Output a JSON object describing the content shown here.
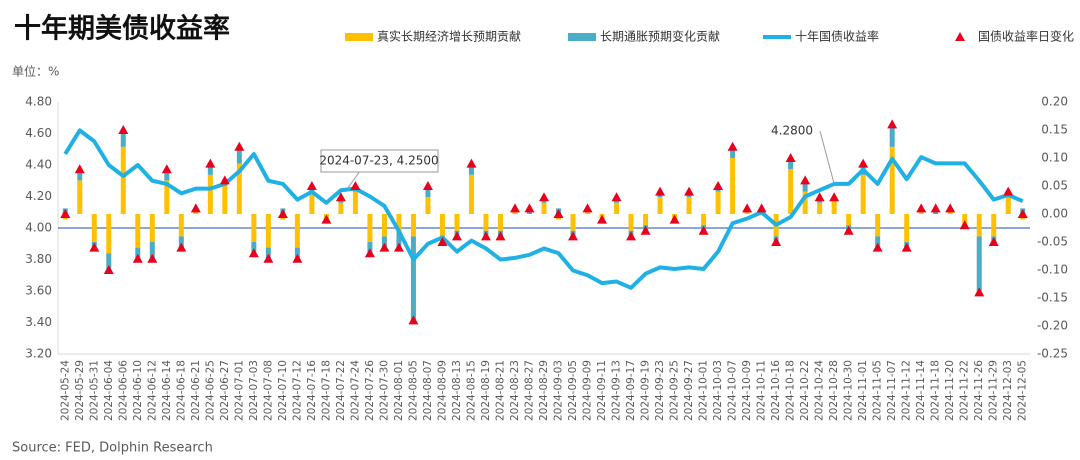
{
  "chart_data": {
    "type": "bar",
    "title": "十年期美债收益率",
    "unit": "单位：%",
    "source": "Source: FED, Dolphin Research",
    "annotations": [
      "2024-07-23, 4.2500",
      "4.2800"
    ],
    "categories": [
      "2024-05-24",
      "2024-05-29",
      "2024-05-31",
      "2024-06-04",
      "2024-06-06",
      "2024-06-10",
      "2024-06-12",
      "2024-06-14",
      "2024-06-18",
      "2024-06-21",
      "2024-06-25",
      "2024-06-27",
      "2024-07-01",
      "2024-07-03",
      "2024-07-08",
      "2024-07-10",
      "2024-07-12",
      "2024-07-16",
      "2024-07-18",
      "2024-07-22",
      "2024-07-24",
      "2024-07-26",
      "2024-07-30",
      "2024-08-01",
      "2024-08-05",
      "2024-08-07",
      "2024-08-09",
      "2024-08-13",
      "2024-08-15",
      "2024-08-19",
      "2024-08-21",
      "2024-08-23",
      "2024-08-27",
      "2024-08-29",
      "2024-09-03",
      "2024-09-05",
      "2024-09-09",
      "2024-09-11",
      "2024-09-13",
      "2024-09-17",
      "2024-09-19",
      "2024-09-23",
      "2024-09-25",
      "2024-09-27",
      "2024-10-01",
      "2024-10-03",
      "2024-10-07",
      "2024-10-09",
      "2024-10-11",
      "2024-10-16",
      "2024-10-18",
      "2024-10-22",
      "2024-10-24",
      "2024-10-28",
      "2024-10-30",
      "2024-11-01",
      "2024-11-05",
      "2024-11-07",
      "2024-11-12",
      "2024-11-14",
      "2024-11-18",
      "2024-11-20",
      "2024-11-22",
      "2024-11-26",
      "2024-11-29",
      "2024-12-03",
      "2024-12-05"
    ],
    "ylim": [
      3.2,
      4.8
    ],
    "yticks": [
      {
        "value": 3.2,
        "label": "3.20"
      },
      {
        "value": 3.4,
        "label": "3.40"
      },
      {
        "value": 3.6,
        "label": "3.60"
      },
      {
        "value": 3.8,
        "label": "3.80"
      },
      {
        "value": 4.0,
        "label": "4.00"
      },
      {
        "value": 4.2,
        "label": "4.20"
      },
      {
        "value": 4.4,
        "label": "4.40"
      },
      {
        "value": 4.6,
        "label": "4.60"
      },
      {
        "value": 4.8,
        "label": "4.80"
      }
    ],
    "y2lim": [
      -0.25,
      0.2
    ],
    "y2ticks": [
      {
        "value": -0.25,
        "label": "-0.25"
      },
      {
        "value": -0.2,
        "label": "-0.20"
      },
      {
        "value": -0.15,
        "label": "-0.15"
      },
      {
        "value": -0.1,
        "label": "-0.10"
      },
      {
        "value": -0.05,
        "label": "-0.05"
      },
      {
        "value": 0,
        "label": "0.00"
      },
      {
        "value": 0.05,
        "label": "0.05"
      },
      {
        "value": 0.1,
        "label": "0.10"
      },
      {
        "value": 0.15,
        "label": "0.15"
      },
      {
        "value": 0.2,
        "label": "0.20"
      }
    ],
    "series": [
      {
        "name": "真实长期经济增长预期贡献",
        "type": "bar",
        "axis": "y2",
        "color": "#ffc000",
        "values": [
          -0.01,
          0.06,
          -0.05,
          -0.07,
          0.12,
          -0.06,
          -0.05,
          0.06,
          -0.04,
          0.01,
          0.07,
          0.05,
          0.09,
          -0.05,
          -0.06,
          -0.01,
          -0.06,
          0.04,
          -0.01,
          0.02,
          0.04,
          -0.05,
          -0.04,
          -0.03,
          -0.04,
          0.03,
          -0.04,
          -0.03,
          0.07,
          -0.03,
          -0.03,
          0.01,
          0.0,
          0.02,
          -0.01,
          -0.03,
          0.01,
          -0.01,
          0.02,
          -0.03,
          -0.02,
          0.03,
          -0.01,
          0.03,
          -0.02,
          0.04,
          0.1,
          0.01,
          0.0,
          -0.04,
          0.08,
          0.04,
          0.02,
          0.03,
          -0.02,
          0.07,
          -0.04,
          0.12,
          -0.05,
          0.01,
          0.0,
          0.01,
          -0.02,
          -0.04,
          -0.04,
          0.03,
          -0.01
        ]
      },
      {
        "name": "长期通胀预期变化贡献",
        "type": "bar",
        "axis": "y2",
        "color": "#4bacc6",
        "values": [
          0.01,
          0.02,
          -0.01,
          -0.03,
          0.03,
          -0.02,
          -0.03,
          0.02,
          -0.02,
          0.0,
          0.02,
          0.01,
          0.03,
          -0.02,
          -0.02,
          0.01,
          -0.02,
          0.01,
          0.0,
          0.01,
          0.01,
          -0.02,
          -0.02,
          -0.03,
          -0.15,
          0.02,
          -0.01,
          -0.01,
          0.02,
          -0.01,
          -0.01,
          0.0,
          0.01,
          0.01,
          0.01,
          -0.01,
          0.0,
          0.0,
          0.01,
          -0.01,
          -0.01,
          0.01,
          0.0,
          0.01,
          -0.01,
          0.01,
          0.02,
          0.0,
          0.01,
          -0.01,
          0.02,
          0.02,
          0.01,
          0.0,
          -0.01,
          0.02,
          -0.02,
          0.04,
          -0.01,
          0.0,
          0.01,
          0.0,
          0.0,
          -0.1,
          -0.01,
          0.01,
          0.01
        ]
      },
      {
        "name": "十年国债收益率",
        "type": "line",
        "color": "#1fb1e6",
        "values": [
          4.47,
          4.62,
          4.55,
          4.4,
          4.33,
          4.4,
          4.3,
          4.28,
          4.22,
          4.25,
          4.25,
          4.28,
          4.36,
          4.47,
          4.3,
          4.28,
          4.18,
          4.23,
          4.16,
          4.24,
          4.25,
          4.2,
          4.14,
          3.98,
          3.8,
          3.9,
          3.94,
          3.85,
          3.92,
          3.87,
          3.8,
          3.81,
          3.83,
          3.87,
          3.84,
          3.73,
          3.7,
          3.65,
          3.66,
          3.62,
          3.71,
          3.75,
          3.74,
          3.75,
          3.74,
          3.85,
          4.03,
          4.06,
          4.1,
          4.02,
          4.07,
          4.2,
          4.24,
          4.28,
          4.28,
          4.37,
          4.28,
          4.44,
          4.31,
          4.45,
          4.41,
          4.41,
          4.41,
          4.3,
          4.18,
          4.21,
          4.17
        ]
      },
      {
        "name": "国债收益率日变化",
        "type": "scatter",
        "axis": "y2",
        "color": "#e8001c",
        "values": [
          0.0,
          0.08,
          -0.06,
          -0.1,
          0.15,
          -0.08,
          -0.08,
          0.08,
          -0.06,
          0.01,
          0.09,
          0.06,
          0.12,
          -0.07,
          -0.08,
          0.0,
          -0.08,
          0.05,
          -0.01,
          0.03,
          0.05,
          -0.07,
          -0.06,
          -0.06,
          -0.19,
          0.05,
          -0.05,
          -0.04,
          0.09,
          -0.04,
          -0.04,
          0.01,
          0.01,
          0.03,
          0.0,
          -0.04,
          0.01,
          -0.01,
          0.03,
          -0.04,
          -0.03,
          0.04,
          -0.01,
          0.04,
          -0.03,
          0.05,
          0.12,
          0.01,
          0.01,
          -0.05,
          0.1,
          0.06,
          0.03,
          0.03,
          -0.03,
          0.09,
          -0.06,
          0.16,
          -0.06,
          0.01,
          0.01,
          0.01,
          -0.02,
          -0.14,
          -0.05,
          0.04,
          0.0
        ]
      }
    ]
  }
}
